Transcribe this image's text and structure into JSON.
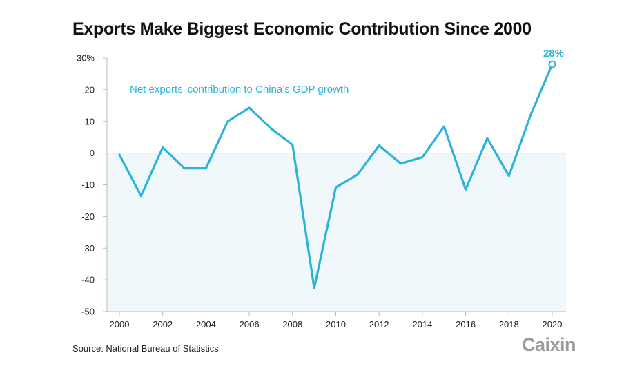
{
  "chart_data": {
    "type": "area",
    "title": "Exports Make Biggest Economic Contribution Since 2000",
    "xlabel": "",
    "ylabel": "",
    "x": [
      2000,
      2001,
      2002,
      2003,
      2004,
      2005,
      2006,
      2007,
      2008,
      2009,
      2010,
      2011,
      2012,
      2013,
      2014,
      2015,
      2016,
      2017,
      2018,
      2019,
      2020
    ],
    "series": [
      {
        "name": "Net exports’ contribution to China’s GDP growth",
        "values": [
          -0.5,
          -13.5,
          1.8,
          -4.8,
          -4.8,
          10.0,
          14.3,
          7.8,
          2.6,
          -42.6,
          -10.8,
          -6.8,
          2.4,
          -3.3,
          -1.3,
          8.4,
          -11.5,
          4.7,
          -7.2,
          12.0,
          28.0
        ]
      }
    ],
    "xlim": [
      2000,
      2020
    ],
    "ylim": [
      -50,
      30
    ],
    "x_ticks": [
      "2000",
      "2002",
      "2004",
      "2006",
      "2008",
      "2010",
      "2012",
      "2014",
      "2016",
      "2018",
      "2020"
    ],
    "y_ticks": [
      "30%",
      "20",
      "10",
      "0",
      "-10",
      "-20",
      "-30",
      "-40",
      "-50"
    ],
    "y_tick_values": [
      30,
      20,
      10,
      0,
      -10,
      -20,
      -30,
      -40,
      -50
    ],
    "annotation": {
      "label": "28%",
      "x": 2020,
      "y": 28
    },
    "grid": false,
    "legend": "top-left",
    "colors": {
      "line": "#2ab4d8",
      "fill": "#f0f8fb",
      "axis": "#bbbbbb"
    }
  },
  "source": "Source: National Bureau of Statistics",
  "logo": "Caixin"
}
